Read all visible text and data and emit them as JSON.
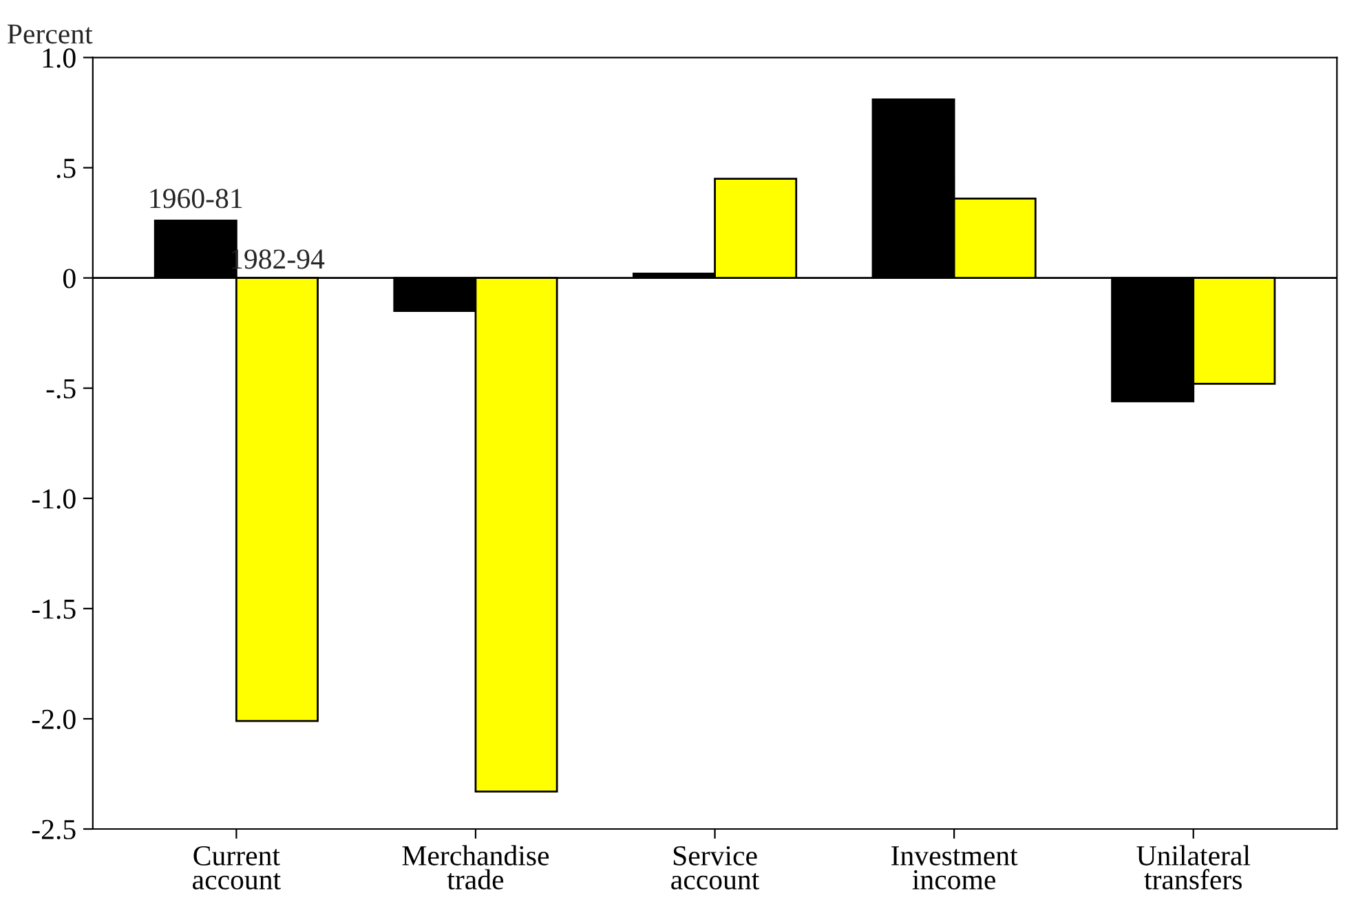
{
  "chart_data": {
    "type": "bar",
    "ylabel": "Percent",
    "categories": [
      "Current\naccount",
      "Merchandise\ntrade",
      "Service\naccount",
      "Investment\nincome",
      "Unilateral\ntransfers"
    ],
    "series": [
      {
        "name": "1960-81",
        "color": "#000000",
        "values": [
          0.26,
          -0.15,
          0.02,
          0.81,
          -0.56
        ]
      },
      {
        "name": "1982-94",
        "color": "#ffff00",
        "values": [
          -2.01,
          -2.33,
          0.45,
          0.36,
          -0.48
        ]
      }
    ],
    "ylim": [
      -2.5,
      1.0
    ],
    "yticks": [
      {
        "value": -2.5,
        "label": "-2.5"
      },
      {
        "value": -2.0,
        "label": "-2.0"
      },
      {
        "value": -1.5,
        "label": "-1.5"
      },
      {
        "value": -1.0,
        "label": "-1.0"
      },
      {
        "value": -0.5,
        "label": "-.5"
      },
      {
        "value": 0,
        "label": "0"
      },
      {
        "value": 0.5,
        "label": ".5"
      },
      {
        "value": 1.0,
        "label": "1.0"
      }
    ],
    "ref_lines": [
      {
        "axis": "y",
        "value": 0,
        "color": "#000000"
      }
    ],
    "grid": false,
    "legend": false
  }
}
